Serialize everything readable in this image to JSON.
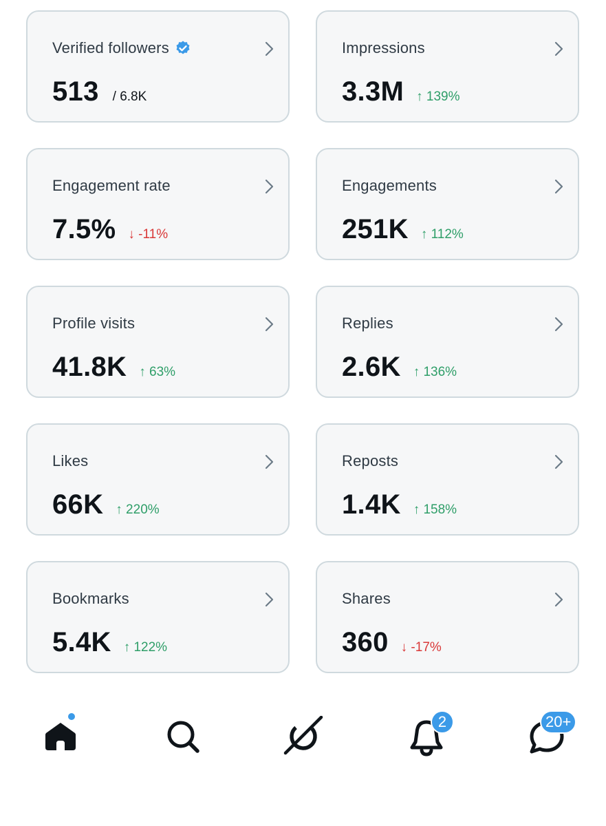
{
  "cards": [
    {
      "title": "Verified followers",
      "value": "513",
      "sub": "/ 6.8K",
      "change": "",
      "direction": ""
    },
    {
      "title": "Impressions",
      "value": "3.3M",
      "sub": "",
      "change": "↑ 139%",
      "direction": "up"
    },
    {
      "title": "Engagement rate",
      "value": "7.5%",
      "sub": "",
      "change": "↓ -11%",
      "direction": "down"
    },
    {
      "title": "Engagements",
      "value": "251K",
      "sub": "",
      "change": "↑ 112%",
      "direction": "up"
    },
    {
      "title": "Profile visits",
      "value": "41.8K",
      "sub": "",
      "change": "↑ 63%",
      "direction": "up"
    },
    {
      "title": "Replies",
      "value": "2.6K",
      "sub": "",
      "change": "↑ 136%",
      "direction": "up"
    },
    {
      "title": "Likes",
      "value": "66K",
      "sub": "",
      "change": "↑ 220%",
      "direction": "up"
    },
    {
      "title": "Reposts",
      "value": "1.4K",
      "sub": "",
      "change": "↑ 158%",
      "direction": "up"
    },
    {
      "title": "Bookmarks",
      "value": "5.4K",
      "sub": "",
      "change": "↑ 122%",
      "direction": "up"
    },
    {
      "title": "Shares",
      "value": "360",
      "sub": "",
      "change": "↓ -17%",
      "direction": "down"
    }
  ],
  "nav": {
    "icons": [
      "home-icon",
      "search-icon",
      "grok-icon",
      "bell-icon",
      "messages-icon"
    ],
    "notifications_badge": "2",
    "messages_badge": "20+"
  },
  "colors": {
    "accent": "#3b9ae8",
    "up": "#2e9e68",
    "down": "#d93838",
    "card_bg": "#f6f7f8",
    "card_border": "#cfd9de"
  }
}
